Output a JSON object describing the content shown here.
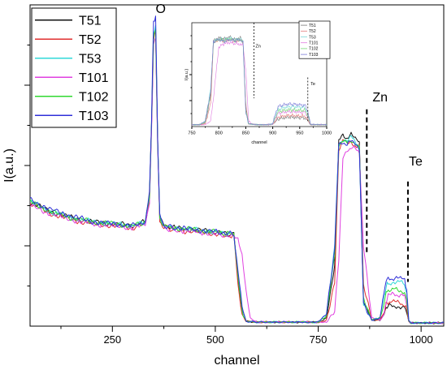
{
  "chart_data": [
    {
      "type": "line",
      "xlabel": "channel",
      "ylabel": "I(a.u.)",
      "xlim": [
        50,
        1055
      ],
      "ylim": [
        0,
        8
      ],
      "x_ticks": [
        250,
        500,
        750,
        1000
      ],
      "show_y_tick_labels": false,
      "grid": false,
      "legend_position": "top-left",
      "annotations": [
        {
          "text": "O",
          "x": 355,
          "y": 7.8
        },
        {
          "text": "Zn",
          "x": 882,
          "y": 5.6
        },
        {
          "text": "Te",
          "x": 970,
          "y": 4.0
        }
      ],
      "marker_lines": [
        {
          "label": "Zn",
          "x": 868,
          "y_range": [
            1.8,
            5.4
          ]
        },
        {
          "label": "Te",
          "x": 968,
          "y_range": [
            1.1,
            3.6
          ]
        }
      ],
      "series": [
        {
          "name": "T51",
          "color": "#111111",
          "x": [
            50,
            100,
            150,
            200,
            250,
            300,
            330,
            340,
            345,
            350,
            355,
            360,
            365,
            375,
            400,
            450,
            500,
            530,
            545,
            555,
            565,
            575,
            600,
            700,
            750,
            770,
            790,
            800,
            810,
            820,
            830,
            840,
            850,
            860,
            880,
            900,
            910,
            915,
            920,
            930,
            940,
            950,
            960,
            965,
            970,
            975,
            1000,
            1055
          ],
          "y": [
            3.1,
            2.85,
            2.7,
            2.6,
            2.55,
            2.5,
            2.6,
            3.2,
            5.0,
            7.2,
            7.4,
            4.6,
            2.7,
            2.5,
            2.45,
            2.4,
            2.35,
            2.3,
            2.3,
            1.2,
            0.4,
            0.12,
            0.1,
            0.1,
            0.1,
            0.2,
            1.5,
            4.6,
            4.75,
            4.7,
            4.8,
            4.65,
            4.55,
            0.6,
            0.15,
            0.15,
            0.3,
            0.45,
            0.48,
            0.5,
            0.5,
            0.48,
            0.45,
            0.35,
            0.12,
            0.08,
            0.08,
            0.08
          ]
        },
        {
          "name": "T52",
          "color": "#e03030",
          "x": [
            50,
            100,
            150,
            200,
            250,
            300,
            330,
            340,
            345,
            350,
            355,
            360,
            365,
            375,
            400,
            450,
            500,
            530,
            545,
            555,
            565,
            575,
            600,
            700,
            750,
            770,
            790,
            800,
            810,
            820,
            830,
            840,
            850,
            860,
            880,
            900,
            910,
            915,
            920,
            930,
            940,
            950,
            960,
            965,
            970,
            975,
            1000,
            1055
          ],
          "y": [
            3.05,
            2.8,
            2.65,
            2.55,
            2.5,
            2.45,
            2.55,
            3.1,
            4.9,
            7.15,
            7.3,
            4.5,
            2.65,
            2.45,
            2.4,
            2.35,
            2.3,
            2.25,
            2.25,
            1.0,
            0.3,
            0.12,
            0.1,
            0.1,
            0.1,
            0.15,
            1.1,
            4.4,
            4.6,
            4.55,
            4.6,
            4.5,
            4.45,
            1.0,
            0.15,
            0.15,
            0.35,
            0.55,
            0.58,
            0.6,
            0.6,
            0.58,
            0.55,
            0.4,
            0.12,
            0.08,
            0.08,
            0.08
          ]
        },
        {
          "name": "T53",
          "color": "#30d8d8",
          "x": [
            50,
            100,
            150,
            200,
            250,
            300,
            330,
            340,
            345,
            350,
            355,
            360,
            365,
            375,
            400,
            450,
            500,
            530,
            545,
            555,
            565,
            575,
            600,
            700,
            750,
            770,
            790,
            800,
            810,
            820,
            830,
            840,
            850,
            860,
            880,
            900,
            910,
            915,
            920,
            930,
            940,
            950,
            960,
            965,
            970,
            975,
            1000,
            1055
          ],
          "y": [
            3.1,
            2.85,
            2.7,
            2.6,
            2.55,
            2.5,
            2.6,
            3.2,
            5.0,
            7.3,
            7.45,
            4.6,
            2.7,
            2.5,
            2.45,
            2.4,
            2.35,
            2.3,
            2.3,
            1.3,
            0.4,
            0.12,
            0.1,
            0.1,
            0.1,
            0.3,
            2.0,
            4.55,
            4.65,
            4.6,
            4.7,
            4.6,
            4.5,
            0.5,
            0.15,
            0.2,
            0.7,
            1.0,
            1.05,
            1.1,
            1.1,
            1.08,
            1.05,
            0.8,
            0.15,
            0.08,
            0.08,
            0.08
          ]
        },
        {
          "name": "T101",
          "color": "#e040e0",
          "x": [
            50,
            100,
            150,
            200,
            250,
            300,
            330,
            340,
            345,
            350,
            355,
            360,
            365,
            375,
            400,
            450,
            500,
            530,
            545,
            555,
            565,
            575,
            585,
            600,
            700,
            750,
            770,
            790,
            800,
            810,
            820,
            830,
            840,
            850,
            860,
            880,
            900,
            910,
            915,
            920,
            930,
            940,
            950,
            960,
            965,
            970,
            975,
            1000,
            1055
          ],
          "y": [
            3.0,
            2.8,
            2.65,
            2.55,
            2.5,
            2.45,
            2.55,
            3.1,
            4.8,
            7.0,
            7.2,
            4.5,
            2.65,
            2.45,
            2.4,
            2.35,
            2.3,
            2.25,
            2.25,
            2.2,
            1.8,
            0.8,
            0.2,
            0.1,
            0.1,
            0.1,
            0.1,
            0.4,
            1.6,
            4.2,
            4.4,
            4.45,
            4.4,
            4.3,
            2.0,
            0.2,
            0.15,
            0.3,
            0.6,
            0.75,
            0.8,
            0.8,
            0.78,
            0.75,
            0.55,
            0.12,
            0.08,
            0.08,
            0.08
          ]
        },
        {
          "name": "T102",
          "color": "#30d830",
          "x": [
            50,
            100,
            150,
            200,
            250,
            300,
            330,
            340,
            345,
            350,
            355,
            360,
            365,
            375,
            400,
            450,
            500,
            530,
            545,
            555,
            565,
            575,
            600,
            700,
            750,
            770,
            790,
            800,
            810,
            820,
            830,
            840,
            850,
            860,
            880,
            900,
            910,
            915,
            920,
            930,
            940,
            950,
            960,
            965,
            970,
            975,
            1000,
            1055
          ],
          "y": [
            3.1,
            2.85,
            2.7,
            2.6,
            2.55,
            2.5,
            2.6,
            3.2,
            5.0,
            7.25,
            7.35,
            4.6,
            2.7,
            2.5,
            2.45,
            2.4,
            2.35,
            2.3,
            2.3,
            1.2,
            0.4,
            0.12,
            0.1,
            0.1,
            0.1,
            0.25,
            1.8,
            4.5,
            4.6,
            4.55,
            4.65,
            4.55,
            4.45,
            0.7,
            0.15,
            0.2,
            0.55,
            0.85,
            0.9,
            0.9,
            0.9,
            0.88,
            0.85,
            0.65,
            0.12,
            0.08,
            0.08,
            0.08
          ]
        },
        {
          "name": "T103",
          "color": "#3030d8",
          "x": [
            50,
            100,
            150,
            200,
            250,
            300,
            330,
            340,
            345,
            350,
            355,
            360,
            365,
            375,
            400,
            450,
            500,
            530,
            545,
            555,
            565,
            575,
            600,
            700,
            750,
            770,
            790,
            800,
            810,
            820,
            830,
            840,
            850,
            860,
            880,
            900,
            910,
            915,
            920,
            930,
            940,
            950,
            960,
            965,
            970,
            975,
            1000,
            1055
          ],
          "y": [
            3.15,
            2.9,
            2.75,
            2.6,
            2.55,
            2.5,
            2.6,
            3.3,
            5.1,
            7.6,
            7.7,
            4.7,
            2.75,
            2.5,
            2.45,
            2.4,
            2.35,
            2.3,
            2.3,
            1.4,
            0.45,
            0.12,
            0.1,
            0.1,
            0.1,
            0.3,
            1.9,
            4.55,
            4.6,
            4.5,
            4.6,
            4.55,
            4.45,
            0.6,
            0.15,
            0.2,
            0.8,
            1.15,
            1.2,
            1.2,
            1.2,
            1.18,
            1.15,
            0.9,
            0.15,
            0.08,
            0.08,
            0.08
          ]
        }
      ]
    },
    {
      "type": "line",
      "xlabel": "channel",
      "ylabel": "I(a.u.)",
      "xlim": [
        750,
        1000
      ],
      "ylim": [
        0,
        5.5
      ],
      "x_ticks": [
        750,
        800,
        850,
        900,
        950,
        1000
      ],
      "show_y_tick_labels": false,
      "grid": false,
      "legend_position": "top-right",
      "annotations": [
        {
          "text": "Zn",
          "x": 868,
          "y": 4.2
        },
        {
          "text": "Te",
          "x": 970,
          "y": 2.2
        }
      ],
      "marker_lines": [
        {
          "label": "Zn",
          "x": 865,
          "y_range": [
            1.5,
            5.5
          ]
        },
        {
          "label": "Te",
          "x": 965,
          "y_range": [
            0.3,
            2.6
          ]
        }
      ],
      "series": [
        {
          "name": "T51",
          "color": "#7a7a7a",
          "x": [
            750,
            765,
            775,
            785,
            790,
            800,
            810,
            820,
            830,
            840,
            845,
            850,
            855,
            870,
            890,
            900,
            905,
            910,
            920,
            930,
            940,
            950,
            960,
            965,
            970,
            1000
          ],
          "y": [
            0.1,
            0.1,
            0.2,
            1.6,
            4.55,
            4.7,
            4.65,
            4.75,
            4.6,
            4.7,
            4.5,
            1.0,
            0.15,
            0.1,
            0.1,
            0.12,
            0.25,
            0.4,
            0.45,
            0.5,
            0.48,
            0.46,
            0.45,
            0.3,
            0.1,
            0.1
          ]
        },
        {
          "name": "T52",
          "color": "#e07a7a",
          "x": [
            750,
            765,
            775,
            785,
            790,
            800,
            810,
            820,
            830,
            840,
            845,
            850,
            855,
            870,
            890,
            900,
            905,
            910,
            920,
            930,
            940,
            950,
            960,
            965,
            970,
            1000
          ],
          "y": [
            0.1,
            0.1,
            0.15,
            1.2,
            4.4,
            4.6,
            4.55,
            4.6,
            4.5,
            4.6,
            4.45,
            1.2,
            0.15,
            0.1,
            0.1,
            0.12,
            0.3,
            0.5,
            0.55,
            0.6,
            0.58,
            0.56,
            0.55,
            0.35,
            0.1,
            0.1
          ]
        },
        {
          "name": "T53",
          "color": "#7ad8d8",
          "x": [
            750,
            765,
            775,
            785,
            790,
            800,
            810,
            820,
            830,
            840,
            845,
            850,
            855,
            870,
            890,
            900,
            905,
            910,
            920,
            930,
            940,
            950,
            960,
            965,
            970,
            1000
          ],
          "y": [
            0.1,
            0.1,
            0.3,
            2.0,
            4.5,
            4.65,
            4.6,
            4.7,
            4.6,
            4.65,
            4.5,
            0.8,
            0.15,
            0.1,
            0.1,
            0.15,
            0.6,
            0.9,
            1.0,
            1.05,
            1.05,
            1.02,
            1.0,
            0.7,
            0.12,
            0.1
          ]
        },
        {
          "name": "T101",
          "color": "#e07ae0",
          "x": [
            750,
            765,
            775,
            785,
            790,
            800,
            810,
            820,
            830,
            840,
            845,
            850,
            855,
            860,
            870,
            890,
            900,
            905,
            910,
            920,
            930,
            940,
            950,
            960,
            965,
            970,
            1000
          ],
          "y": [
            0.1,
            0.1,
            0.1,
            0.3,
            1.5,
            4.2,
            4.4,
            4.45,
            4.4,
            4.35,
            4.3,
            3.0,
            0.4,
            0.15,
            0.1,
            0.1,
            0.12,
            0.45,
            0.7,
            0.75,
            0.8,
            0.78,
            0.76,
            0.75,
            0.5,
            0.1,
            0.1
          ]
        },
        {
          "name": "T102",
          "color": "#7ad87a",
          "x": [
            750,
            765,
            775,
            785,
            790,
            800,
            810,
            820,
            830,
            840,
            845,
            850,
            855,
            870,
            890,
            900,
            905,
            910,
            920,
            930,
            940,
            950,
            960,
            965,
            970,
            1000
          ],
          "y": [
            0.1,
            0.1,
            0.25,
            1.8,
            4.45,
            4.6,
            4.55,
            4.65,
            4.55,
            4.6,
            4.45,
            0.9,
            0.15,
            0.1,
            0.1,
            0.14,
            0.5,
            0.8,
            0.85,
            0.9,
            0.88,
            0.86,
            0.85,
            0.6,
            0.1,
            0.1
          ]
        },
        {
          "name": "T103",
          "color": "#7a7ad8",
          "x": [
            750,
            765,
            775,
            785,
            790,
            800,
            810,
            820,
            830,
            840,
            845,
            850,
            855,
            870,
            890,
            900,
            905,
            910,
            920,
            930,
            940,
            950,
            960,
            965,
            970,
            1000
          ],
          "y": [
            0.1,
            0.1,
            0.3,
            1.9,
            4.5,
            4.6,
            4.5,
            4.6,
            4.55,
            4.6,
            4.45,
            0.8,
            0.15,
            0.1,
            0.1,
            0.15,
            0.7,
            1.05,
            1.15,
            1.2,
            1.18,
            1.15,
            1.12,
            0.8,
            0.12,
            0.1
          ]
        }
      ]
    }
  ]
}
